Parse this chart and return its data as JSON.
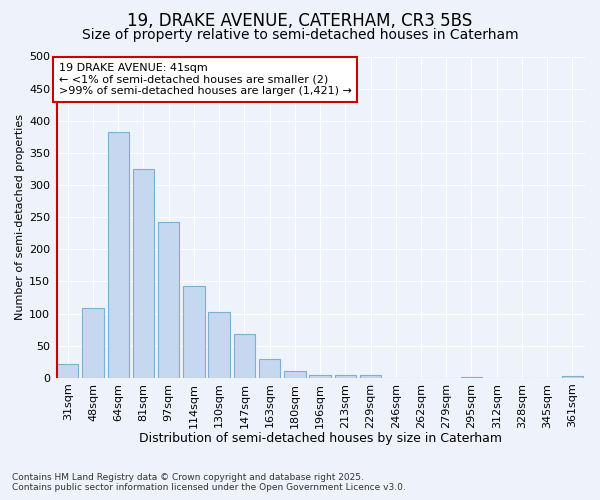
{
  "title1": "19, DRAKE AVENUE, CATERHAM, CR3 5BS",
  "title2": "Size of property relative to semi-detached houses in Caterham",
  "xlabel": "Distribution of semi-detached houses by size in Caterham",
  "ylabel": "Number of semi-detached properties",
  "categories": [
    "31sqm",
    "48sqm",
    "64sqm",
    "81sqm",
    "97sqm",
    "114sqm",
    "130sqm",
    "147sqm",
    "163sqm",
    "180sqm",
    "196sqm",
    "213sqm",
    "229sqm",
    "246sqm",
    "262sqm",
    "279sqm",
    "295sqm",
    "312sqm",
    "328sqm",
    "345sqm",
    "361sqm"
  ],
  "values": [
    22,
    108,
    383,
    325,
    242,
    143,
    102,
    68,
    30,
    10,
    5,
    5,
    4,
    0,
    0,
    0,
    1,
    0,
    0,
    0,
    3
  ],
  "bar_color": "#c5d8f0",
  "bar_edge_color": "#7bafd4",
  "annotation_text": "19 DRAKE AVENUE: 41sqm\n← <1% of semi-detached houses are smaller (2)\n>99% of semi-detached houses are larger (1,421) →",
  "annotation_box_color": "#ffffff",
  "annotation_box_edge": "#cc0000",
  "red_line_color": "#cc0000",
  "footnote1": "Contains HM Land Registry data © Crown copyright and database right 2025.",
  "footnote2": "Contains public sector information licensed under the Open Government Licence v3.0.",
  "background_color": "#eef2fa",
  "ylim": [
    0,
    500
  ],
  "yticks": [
    0,
    50,
    100,
    150,
    200,
    250,
    300,
    350,
    400,
    450,
    500
  ],
  "grid_color": "#ffffff",
  "title1_fontsize": 12,
  "title2_fontsize": 10,
  "xlabel_fontsize": 9,
  "ylabel_fontsize": 8,
  "tick_fontsize": 8,
  "annotation_fontsize": 8
}
